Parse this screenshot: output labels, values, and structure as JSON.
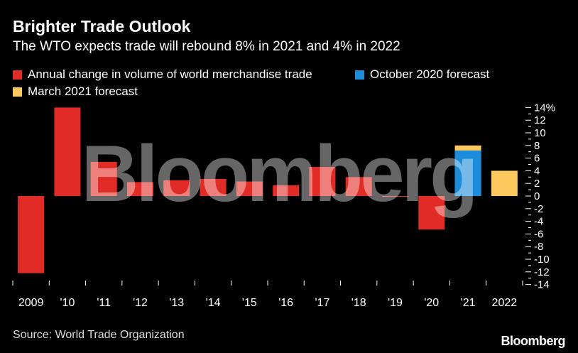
{
  "title": "Brighter Trade Outlook",
  "subtitle": "The WTO expects trade will rebound 8% in 2021 and 4% in 2022",
  "legend": [
    {
      "label": "Annual change in volume of world merchandise trade",
      "color": "#e12b26"
    },
    {
      "label": "October 2020 forecast",
      "color": "#1c8cdb"
    },
    {
      "label": "March 2021 forecast",
      "color": "#fdc85e"
    }
  ],
  "source": "Source: World Trade Organization",
  "logo": "Bloomberg",
  "watermark": "Bloomberg",
  "chart_data": {
    "type": "bar",
    "categories": [
      "2009",
      "'10",
      "'11",
      "'12",
      "'13",
      "'14",
      "'15",
      "'16",
      "'17",
      "'18",
      "'19",
      "'20",
      "'21",
      "2022"
    ],
    "series": [
      {
        "name": "Annual change in volume of world merchandise trade",
        "color": "#e12b26",
        "values": [
          -12.2,
          14.0,
          5.4,
          2.2,
          2.5,
          2.7,
          2.3,
          1.7,
          4.6,
          3.0,
          -0.1,
          -5.3,
          null,
          null
        ]
      },
      {
        "name": "October 2020 forecast",
        "color": "#1c8cdb",
        "values": [
          null,
          null,
          null,
          null,
          null,
          null,
          null,
          null,
          null,
          null,
          null,
          null,
          7.2,
          null
        ]
      },
      {
        "name": "March 2021 forecast",
        "color": "#fdc85e",
        "values": [
          null,
          null,
          null,
          null,
          null,
          null,
          null,
          null,
          null,
          null,
          null,
          null,
          8.0,
          4.0
        ]
      }
    ],
    "ylim": [
      -14,
      14
    ],
    "yticks": [
      "14%",
      "12",
      "10",
      "8",
      "6",
      "4",
      "2",
      "0",
      "-2",
      "-4",
      "-6",
      "-8",
      "-10",
      "-12",
      "-14"
    ],
    "ytick_values": [
      14,
      12,
      10,
      8,
      6,
      4,
      2,
      0,
      -2,
      -4,
      -6,
      -8,
      -10,
      -12,
      -14
    ],
    "axis_position": "right",
    "grid": false
  }
}
